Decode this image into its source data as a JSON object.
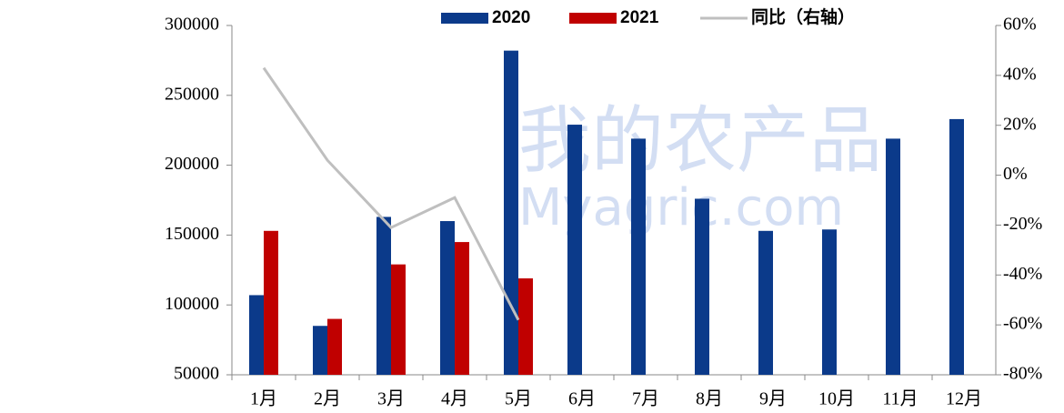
{
  "chart_data": {
    "type": "bar",
    "categories": [
      "1月",
      "2月",
      "3月",
      "4月",
      "5月",
      "6月",
      "7月",
      "8月",
      "9月",
      "10月",
      "11月",
      "12月"
    ],
    "series": [
      {
        "name": "2020",
        "color": "#0b3a8a",
        "values": [
          107000,
          85000,
          163000,
          160000,
          282000,
          229000,
          219000,
          176000,
          153000,
          154000,
          219000,
          233000
        ]
      },
      {
        "name": "2021",
        "color": "#c00000",
        "values": [
          153000,
          90000,
          129000,
          145000,
          119000,
          null,
          null,
          null,
          null,
          null,
          null,
          null
        ]
      },
      {
        "name": "同比（右轴）",
        "color": "#bfbfbf",
        "type": "line",
        "axis": "y2",
        "values": [
          43,
          6,
          -21,
          -9,
          -58,
          null,
          null,
          null,
          null,
          null,
          null,
          null
        ]
      }
    ],
    "ylim": [
      50000,
      300000
    ],
    "yticks": [
      50000,
      100000,
      150000,
      200000,
      250000,
      300000
    ],
    "y2lim": [
      -80,
      60
    ],
    "y2ticks": [
      {
        "value": -80,
        "label": "-80%"
      },
      {
        "value": -60,
        "label": "-60%"
      },
      {
        "value": -40,
        "label": "-40%"
      },
      {
        "value": -20,
        "label": "-20%"
      },
      {
        "value": 0,
        "label": "0%"
      },
      {
        "value": 20,
        "label": "20%"
      },
      {
        "value": 40,
        "label": "40%"
      },
      {
        "value": 60,
        "label": "60%"
      }
    ],
    "legend": "top",
    "watermark": [
      "我的农产品",
      "Myagric.com"
    ]
  }
}
